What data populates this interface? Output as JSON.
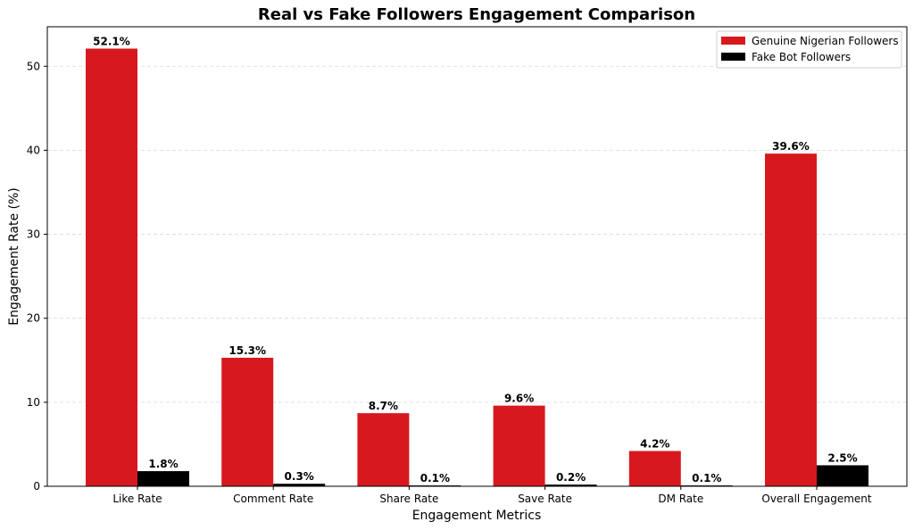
{
  "chart_data": {
    "type": "bar",
    "title": "Real vs Fake Followers Engagement Comparison",
    "xlabel": "Engagement Metrics",
    "ylabel": "Engagement Rate (%)",
    "categories": [
      "Like Rate",
      "Comment Rate",
      "Share Rate",
      "Save Rate",
      "DM Rate",
      "Overall Engagement"
    ],
    "series": [
      {
        "name": "Genuine Nigerian Followers",
        "color": "#d7191f",
        "values": [
          52.1,
          15.3,
          8.7,
          9.6,
          4.2,
          39.6
        ],
        "labels": [
          "52.1%",
          "15.3%",
          "8.7%",
          "9.6%",
          "4.2%",
          "39.6%"
        ]
      },
      {
        "name": "Fake Bot Followers",
        "color": "#000000",
        "values": [
          1.8,
          0.3,
          0.1,
          0.2,
          0.1,
          2.5
        ],
        "labels": [
          "1.8%",
          "0.3%",
          "0.1%",
          "0.2%",
          "0.1%",
          "2.5%"
        ]
      }
    ],
    "ylim": [
      0,
      54.7
    ],
    "yticks": [
      0,
      10,
      20,
      30,
      40,
      50
    ],
    "grid": "y dashed",
    "legend_position": "top-right"
  }
}
